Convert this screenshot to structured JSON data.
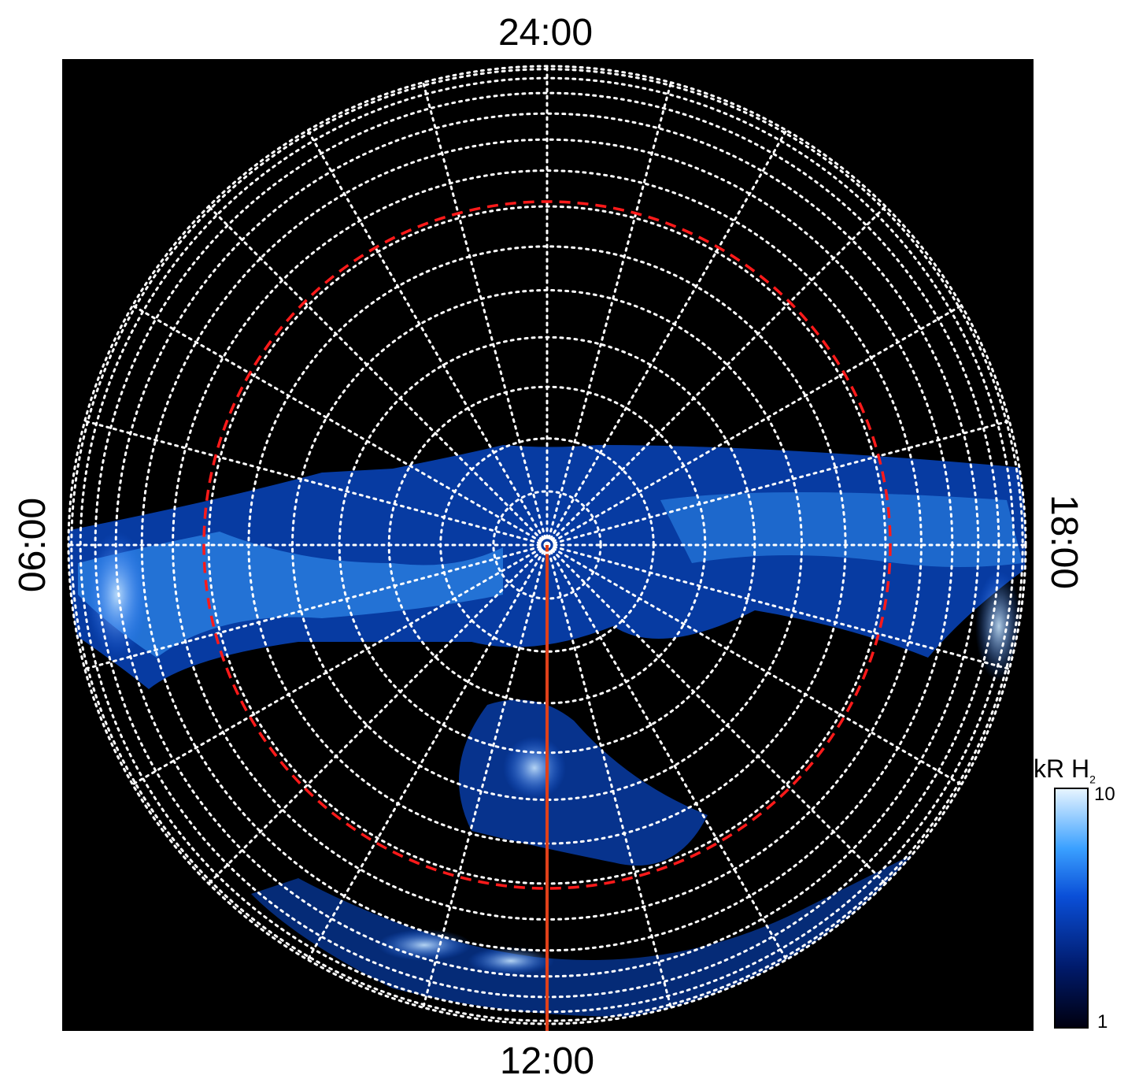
{
  "labels": {
    "top": "24:00",
    "bottom": "12:00",
    "left": "06:00",
    "right": "18:00"
  },
  "colorbar": {
    "title": "kR H",
    "title_sub": "2",
    "max": "10",
    "min": "1"
  },
  "colors": {
    "background": "#000000",
    "grid": "#ffffff",
    "reference_circle": "#ff1a1a",
    "meridian": "#e0401a",
    "emission": "#1a6cff"
  },
  "grid": {
    "local_time_sectors": 24,
    "latitude_rings": 14,
    "reference_circle_dashed": true
  }
}
